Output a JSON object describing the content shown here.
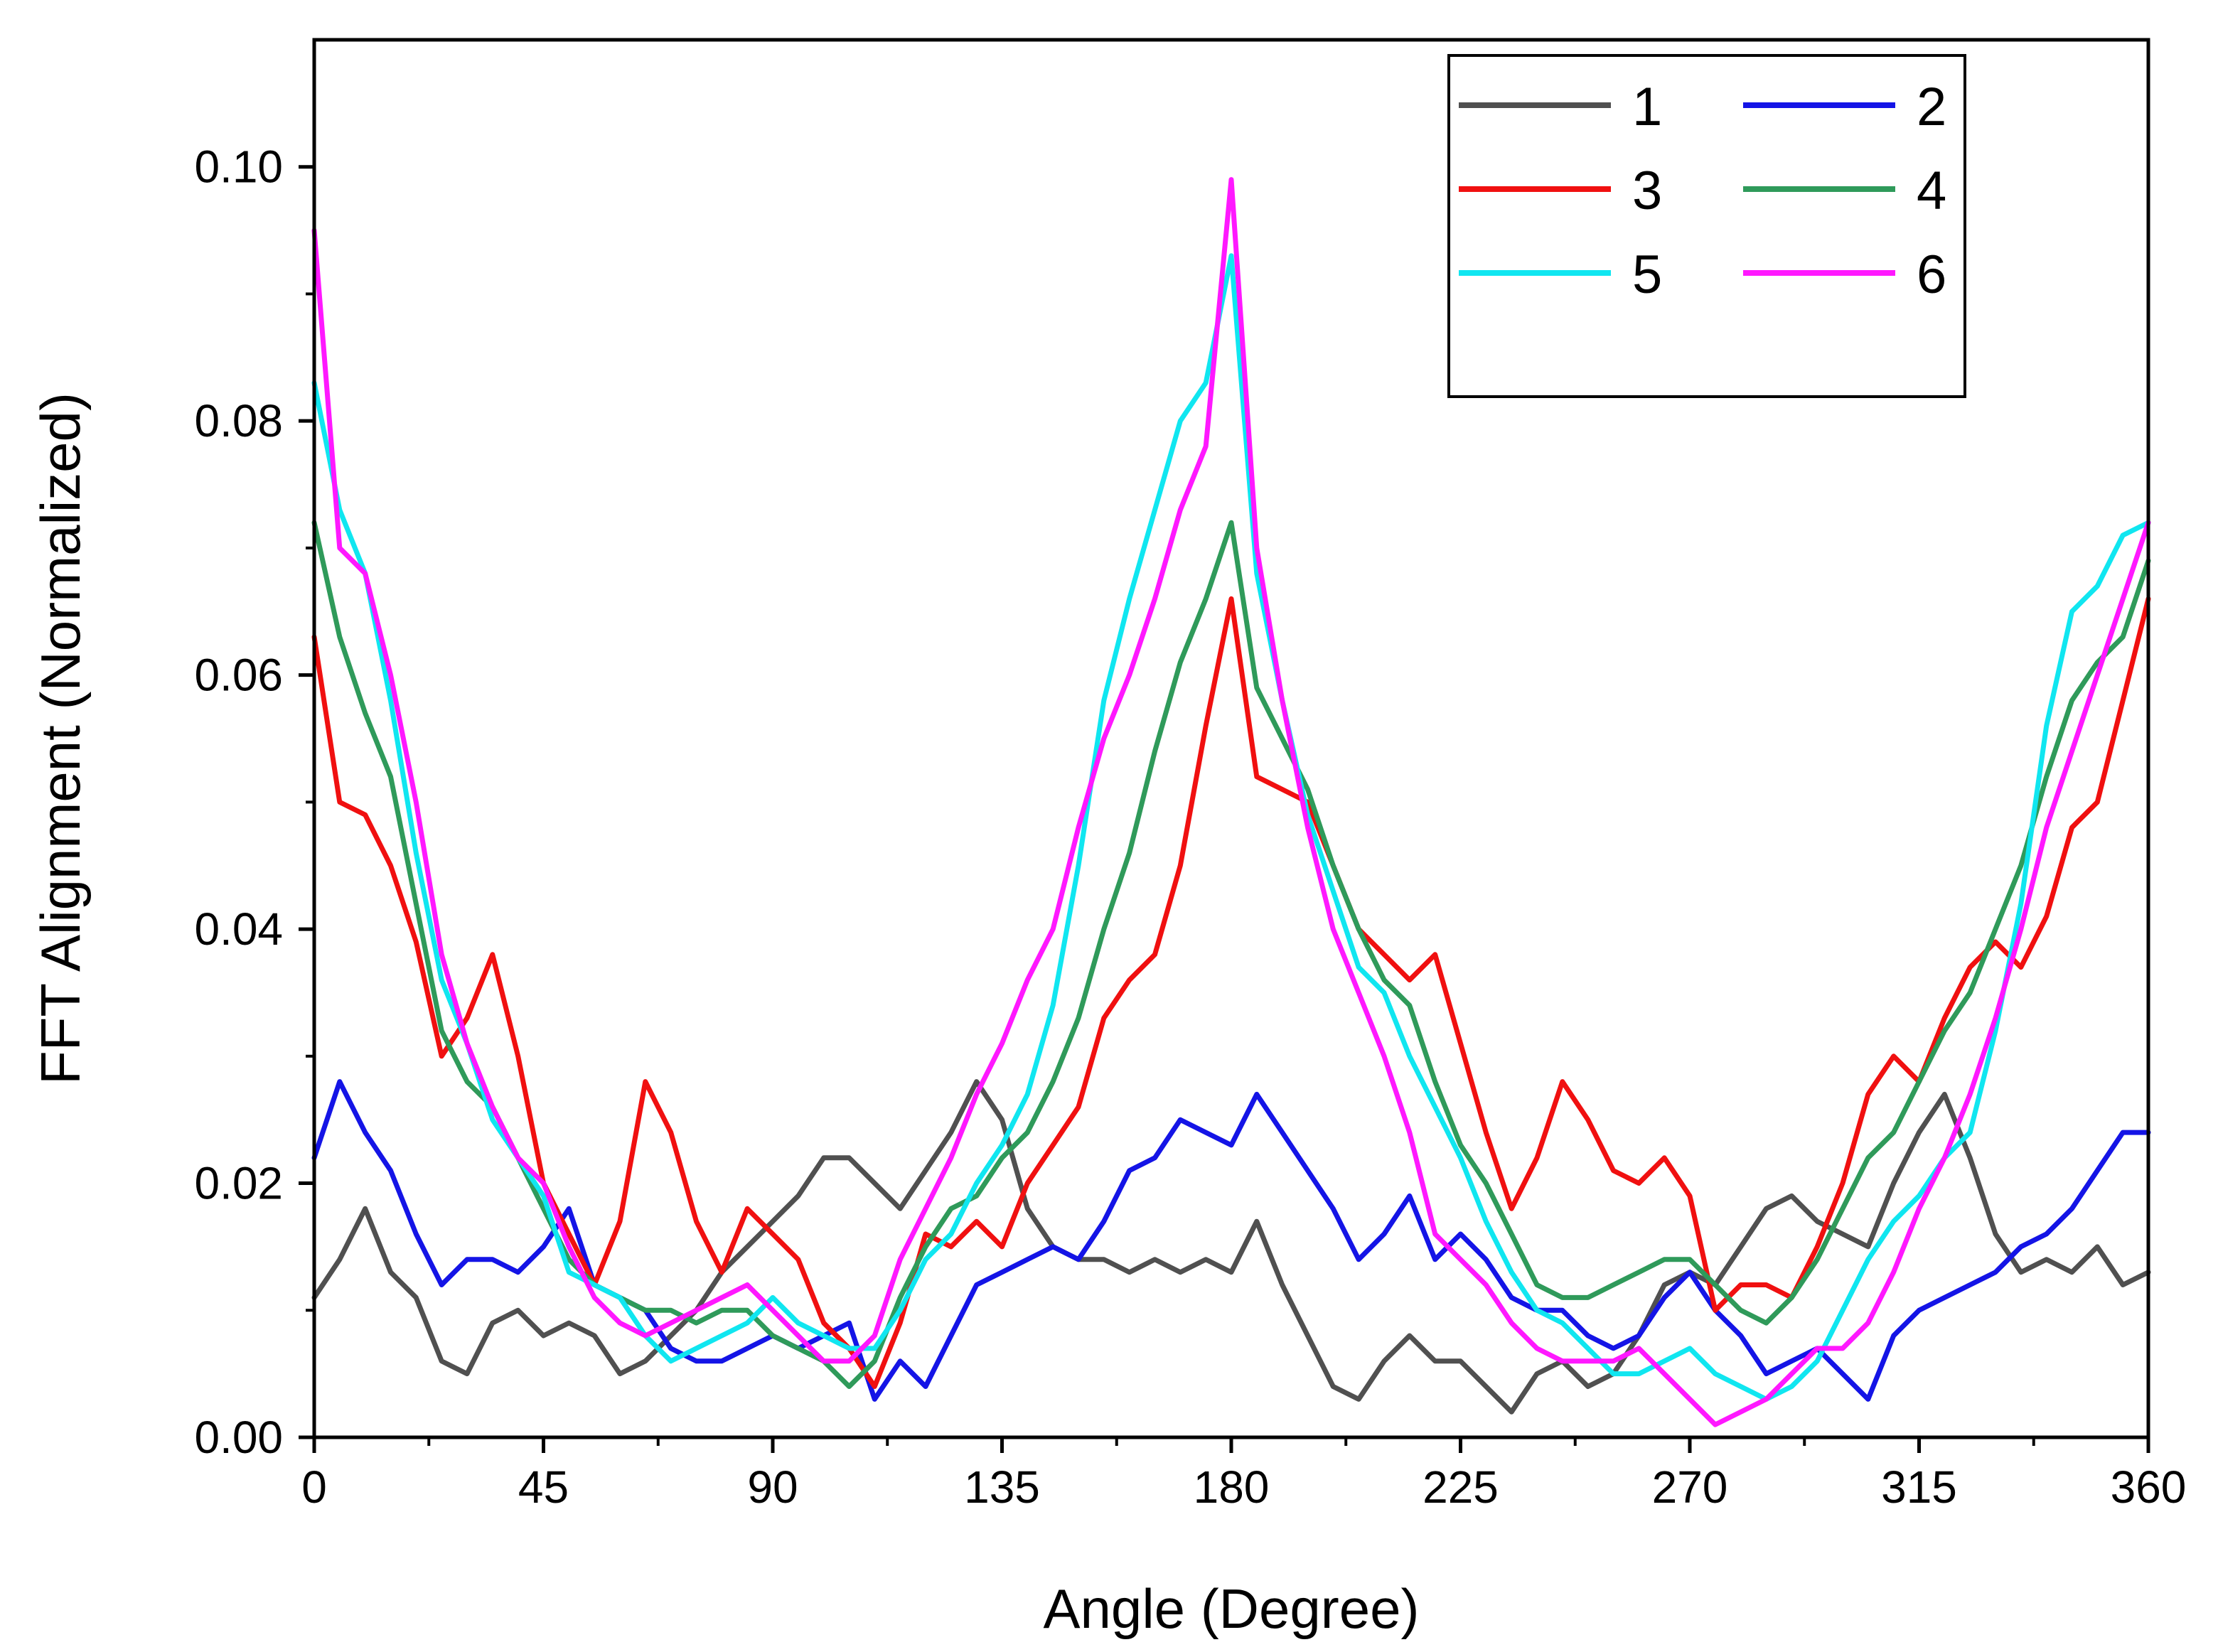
{
  "chart_data": {
    "type": "line",
    "title": "",
    "xlabel": "Angle (Degree)",
    "ylabel": "FFT Alignment (Normalized)",
    "xlim": [
      0,
      360
    ],
    "ylim": [
      0,
      0.11
    ],
    "xticks": [
      0,
      45,
      90,
      135,
      180,
      225,
      270,
      315,
      360
    ],
    "xtick_labels": [
      "0",
      "45",
      "90",
      "135",
      "180",
      "225",
      "270",
      "315",
      "360"
    ],
    "yticks": [
      0,
      0.02,
      0.04,
      0.06,
      0.08,
      0.1
    ],
    "ytick_labels": [
      "0.00",
      "0.02",
      "0.04",
      "0.06",
      "0.08",
      "0.10"
    ],
    "grid": false,
    "legend_position": "top-right",
    "x": [
      0,
      5,
      10,
      15,
      20,
      25,
      30,
      35,
      40,
      45,
      50,
      55,
      60,
      65,
      70,
      75,
      80,
      85,
      90,
      95,
      100,
      105,
      110,
      115,
      120,
      125,
      130,
      135,
      140,
      145,
      150,
      155,
      160,
      165,
      170,
      175,
      180,
      185,
      190,
      195,
      200,
      205,
      210,
      215,
      220,
      225,
      230,
      235,
      240,
      245,
      250,
      255,
      260,
      265,
      270,
      275,
      280,
      285,
      290,
      295,
      300,
      305,
      310,
      315,
      320,
      325,
      330,
      335,
      340,
      345,
      350,
      355,
      360
    ],
    "series": [
      {
        "name": "1",
        "color": "#505050",
        "values": [
          0.011,
          0.014,
          0.018,
          0.013,
          0.011,
          0.006,
          0.005,
          0.009,
          0.01,
          0.008,
          0.009,
          0.008,
          0.005,
          0.006,
          0.008,
          0.01,
          0.013,
          0.015,
          0.017,
          0.019,
          0.022,
          0.022,
          0.02,
          0.018,
          0.021,
          0.024,
          0.028,
          0.025,
          0.018,
          0.015,
          0.014,
          0.014,
          0.013,
          0.014,
          0.013,
          0.014,
          0.013,
          0.017,
          0.012,
          0.008,
          0.004,
          0.003,
          0.006,
          0.008,
          0.006,
          0.006,
          0.004,
          0.002,
          0.005,
          0.006,
          0.004,
          0.005,
          0.008,
          0.012,
          0.013,
          0.012,
          0.015,
          0.018,
          0.019,
          0.017,
          0.016,
          0.015,
          0.02,
          0.024,
          0.027,
          0.022,
          0.016,
          0.013,
          0.014,
          0.013,
          0.015,
          0.012,
          0.013
        ]
      },
      {
        "name": "2",
        "color": "#1414e6",
        "values": [
          0.022,
          0.028,
          0.024,
          0.021,
          0.016,
          0.012,
          0.014,
          0.014,
          0.013,
          0.015,
          0.018,
          0.012,
          0.011,
          0.01,
          0.007,
          0.006,
          0.006,
          0.007,
          0.008,
          0.007,
          0.008,
          0.009,
          0.003,
          0.006,
          0.004,
          0.008,
          0.012,
          0.013,
          0.014,
          0.015,
          0.014,
          0.017,
          0.021,
          0.022,
          0.025,
          0.024,
          0.023,
          0.027,
          0.024,
          0.021,
          0.018,
          0.014,
          0.016,
          0.019,
          0.014,
          0.016,
          0.014,
          0.011,
          0.01,
          0.01,
          0.008,
          0.007,
          0.008,
          0.011,
          0.013,
          0.01,
          0.008,
          0.005,
          0.006,
          0.007,
          0.005,
          0.003,
          0.008,
          0.01,
          0.011,
          0.012,
          0.013,
          0.015,
          0.016,
          0.018,
          0.021,
          0.024,
          0.024
        ]
      },
      {
        "name": "3",
        "color": "#f01010",
        "values": [
          0.063,
          0.05,
          0.049,
          0.045,
          0.039,
          0.03,
          0.033,
          0.038,
          0.03,
          0.02,
          0.016,
          0.012,
          0.017,
          0.028,
          0.024,
          0.017,
          0.013,
          0.018,
          0.016,
          0.014,
          0.009,
          0.007,
          0.004,
          0.009,
          0.016,
          0.015,
          0.017,
          0.015,
          0.02,
          0.023,
          0.026,
          0.033,
          0.036,
          0.038,
          0.045,
          0.056,
          0.066,
          0.052,
          0.051,
          0.05,
          0.045,
          0.04,
          0.038,
          0.036,
          0.038,
          0.031,
          0.024,
          0.018,
          0.022,
          0.028,
          0.025,
          0.021,
          0.02,
          0.022,
          0.019,
          0.01,
          0.012,
          0.012,
          0.011,
          0.015,
          0.02,
          0.027,
          0.03,
          0.028,
          0.033,
          0.037,
          0.039,
          0.037,
          0.041,
          0.048,
          0.05,
          0.058,
          0.066
        ]
      },
      {
        "name": "4",
        "color": "#2f9a5a",
        "values": [
          0.072,
          0.063,
          0.057,
          0.052,
          0.042,
          0.032,
          0.028,
          0.026,
          0.022,
          0.018,
          0.014,
          0.012,
          0.011,
          0.01,
          0.01,
          0.009,
          0.01,
          0.01,
          0.008,
          0.007,
          0.006,
          0.004,
          0.006,
          0.011,
          0.015,
          0.018,
          0.019,
          0.022,
          0.024,
          0.028,
          0.033,
          0.04,
          0.046,
          0.054,
          0.061,
          0.066,
          0.072,
          0.059,
          0.055,
          0.051,
          0.045,
          0.04,
          0.036,
          0.034,
          0.028,
          0.023,
          0.02,
          0.016,
          0.012,
          0.011,
          0.011,
          0.012,
          0.013,
          0.014,
          0.014,
          0.012,
          0.01,
          0.009,
          0.011,
          0.014,
          0.018,
          0.022,
          0.024,
          0.028,
          0.032,
          0.035,
          0.04,
          0.045,
          0.052,
          0.058,
          0.061,
          0.063,
          0.069
        ]
      },
      {
        "name": "5",
        "color": "#10e6f0",
        "values": [
          0.083,
          0.073,
          0.068,
          0.058,
          0.046,
          0.036,
          0.031,
          0.025,
          0.022,
          0.019,
          0.013,
          0.012,
          0.011,
          0.008,
          0.006,
          0.007,
          0.008,
          0.009,
          0.011,
          0.009,
          0.008,
          0.007,
          0.007,
          0.01,
          0.014,
          0.016,
          0.02,
          0.023,
          0.027,
          0.034,
          0.045,
          0.058,
          0.066,
          0.073,
          0.08,
          0.083,
          0.093,
          0.068,
          0.058,
          0.049,
          0.043,
          0.037,
          0.035,
          0.03,
          0.026,
          0.022,
          0.017,
          0.013,
          0.01,
          0.009,
          0.007,
          0.005,
          0.005,
          0.006,
          0.007,
          0.005,
          0.004,
          0.003,
          0.004,
          0.006,
          0.01,
          0.014,
          0.017,
          0.019,
          0.022,
          0.024,
          0.032,
          0.042,
          0.056,
          0.065,
          0.067,
          0.071,
          0.072
        ]
      },
      {
        "name": "6",
        "color": "#ff18ff",
        "values": [
          0.095,
          0.07,
          0.068,
          0.06,
          0.05,
          0.038,
          0.031,
          0.026,
          0.022,
          0.02,
          0.015,
          0.011,
          0.009,
          0.008,
          0.009,
          0.01,
          0.011,
          0.012,
          0.01,
          0.008,
          0.006,
          0.006,
          0.008,
          0.014,
          0.018,
          0.022,
          0.027,
          0.031,
          0.036,
          0.04,
          0.048,
          0.055,
          0.06,
          0.066,
          0.073,
          0.078,
          0.099,
          0.07,
          0.058,
          0.048,
          0.04,
          0.035,
          0.03,
          0.024,
          0.016,
          0.014,
          0.012,
          0.009,
          0.007,
          0.006,
          0.006,
          0.006,
          0.007,
          0.005,
          0.003,
          0.001,
          0.002,
          0.003,
          0.005,
          0.007,
          0.007,
          0.009,
          0.013,
          0.018,
          0.022,
          0.027,
          0.033,
          0.04,
          0.048,
          0.054,
          0.06,
          0.066,
          0.072
        ]
      }
    ]
  }
}
